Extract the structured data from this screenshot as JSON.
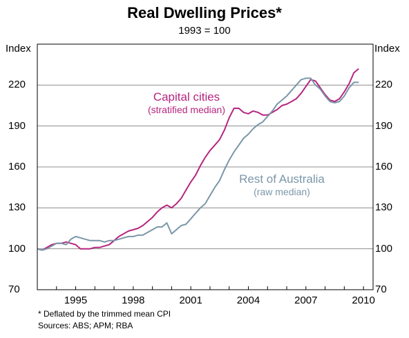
{
  "chart_data": {
    "type": "line",
    "title": "Real Dwelling Prices*",
    "subtitle": "1993 = 100",
    "y_unit_label": "Index",
    "ylim": [
      70,
      250
    ],
    "yticks": [
      70,
      100,
      130,
      160,
      190,
      220
    ],
    "xlim": [
      1993,
      2010.5
    ],
    "xticks": [
      1995,
      1998,
      2001,
      2004,
      2007,
      2010
    ],
    "grid": "horizontal",
    "series": [
      {
        "name": "Capital cities",
        "name_sub": "(stratified median)",
        "color": "#b5257f",
        "points": [
          [
            1993.0,
            100
          ],
          [
            1993.25,
            99
          ],
          [
            1993.5,
            101
          ],
          [
            1993.75,
            103
          ],
          [
            1994.0,
            104
          ],
          [
            1994.25,
            104
          ],
          [
            1994.5,
            105
          ],
          [
            1994.75,
            104
          ],
          [
            1995.0,
            103
          ],
          [
            1995.25,
            100
          ],
          [
            1995.5,
            100
          ],
          [
            1995.75,
            100
          ],
          [
            1996.0,
            101
          ],
          [
            1996.25,
            101
          ],
          [
            1996.5,
            102
          ],
          [
            1996.75,
            103
          ],
          [
            1997.0,
            106
          ],
          [
            1997.25,
            109
          ],
          [
            1997.5,
            111
          ],
          [
            1997.75,
            113
          ],
          [
            1998.0,
            114
          ],
          [
            1998.25,
            115
          ],
          [
            1998.5,
            117
          ],
          [
            1998.75,
            120
          ],
          [
            1999.0,
            123
          ],
          [
            1999.25,
            127
          ],
          [
            1999.5,
            130
          ],
          [
            1999.75,
            132
          ],
          [
            2000.0,
            130
          ],
          [
            2000.25,
            133
          ],
          [
            2000.5,
            137
          ],
          [
            2000.75,
            143
          ],
          [
            2001.0,
            149
          ],
          [
            2001.25,
            154
          ],
          [
            2001.5,
            161
          ],
          [
            2001.75,
            167
          ],
          [
            2002.0,
            172
          ],
          [
            2002.25,
            176
          ],
          [
            2002.5,
            180
          ],
          [
            2002.75,
            187
          ],
          [
            2003.0,
            196
          ],
          [
            2003.25,
            203
          ],
          [
            2003.5,
            203
          ],
          [
            2003.75,
            200
          ],
          [
            2004.0,
            199
          ],
          [
            2004.25,
            201
          ],
          [
            2004.5,
            200
          ],
          [
            2004.75,
            198
          ],
          [
            2005.0,
            198
          ],
          [
            2005.25,
            200
          ],
          [
            2005.5,
            202
          ],
          [
            2005.75,
            205
          ],
          [
            2006.0,
            206
          ],
          [
            2006.25,
            208
          ],
          [
            2006.5,
            210
          ],
          [
            2006.75,
            214
          ],
          [
            2007.0,
            219
          ],
          [
            2007.25,
            224
          ],
          [
            2007.5,
            223
          ],
          [
            2007.75,
            218
          ],
          [
            2008.0,
            213
          ],
          [
            2008.25,
            209
          ],
          [
            2008.5,
            208
          ],
          [
            2008.75,
            210
          ],
          [
            2009.0,
            215
          ],
          [
            2009.25,
            221
          ],
          [
            2009.5,
            229
          ],
          [
            2009.75,
            232
          ]
        ]
      },
      {
        "name": "Rest of Australia",
        "name_sub": "(raw median)",
        "color": "#7a96a8",
        "points": [
          [
            1993.0,
            100
          ],
          [
            1993.25,
            99
          ],
          [
            1993.5,
            100
          ],
          [
            1993.75,
            102
          ],
          [
            1994.0,
            104
          ],
          [
            1994.25,
            104
          ],
          [
            1994.5,
            103
          ],
          [
            1994.75,
            107
          ],
          [
            1995.0,
            109
          ],
          [
            1995.25,
            108
          ],
          [
            1995.5,
            107
          ],
          [
            1995.75,
            106
          ],
          [
            1996.0,
            106
          ],
          [
            1996.25,
            106
          ],
          [
            1996.5,
            105
          ],
          [
            1996.75,
            106
          ],
          [
            1997.0,
            106
          ],
          [
            1997.25,
            107
          ],
          [
            1997.5,
            108
          ],
          [
            1997.75,
            109
          ],
          [
            1998.0,
            109
          ],
          [
            1998.25,
            110
          ],
          [
            1998.5,
            110
          ],
          [
            1998.75,
            112
          ],
          [
            1999.0,
            114
          ],
          [
            1999.25,
            116
          ],
          [
            1999.5,
            116
          ],
          [
            1999.75,
            119
          ],
          [
            2000.0,
            111
          ],
          [
            2000.25,
            114
          ],
          [
            2000.5,
            117
          ],
          [
            2000.75,
            118
          ],
          [
            2001.0,
            122
          ],
          [
            2001.25,
            126
          ],
          [
            2001.5,
            130
          ],
          [
            2001.75,
            133
          ],
          [
            2002.0,
            139
          ],
          [
            2002.25,
            145
          ],
          [
            2002.5,
            150
          ],
          [
            2002.75,
            158
          ],
          [
            2003.0,
            165
          ],
          [
            2003.25,
            171
          ],
          [
            2003.5,
            176
          ],
          [
            2003.75,
            181
          ],
          [
            2004.0,
            184
          ],
          [
            2004.25,
            188
          ],
          [
            2004.5,
            191
          ],
          [
            2004.75,
            193
          ],
          [
            2005.0,
            197
          ],
          [
            2005.25,
            201
          ],
          [
            2005.5,
            206
          ],
          [
            2005.75,
            209
          ],
          [
            2006.0,
            212
          ],
          [
            2006.25,
            216
          ],
          [
            2006.5,
            220
          ],
          [
            2006.75,
            224
          ],
          [
            2007.0,
            225
          ],
          [
            2007.25,
            225
          ],
          [
            2007.5,
            220
          ],
          [
            2007.75,
            217
          ],
          [
            2008.0,
            212
          ],
          [
            2008.25,
            208
          ],
          [
            2008.5,
            207
          ],
          [
            2008.75,
            208
          ],
          [
            2009.0,
            212
          ],
          [
            2009.25,
            218
          ],
          [
            2009.5,
            222
          ],
          [
            2009.75,
            222
          ]
        ]
      }
    ],
    "footnotes": [
      "*  Deflated by the trimmed mean CPI",
      "Sources: ABS; APM; RBA"
    ]
  }
}
